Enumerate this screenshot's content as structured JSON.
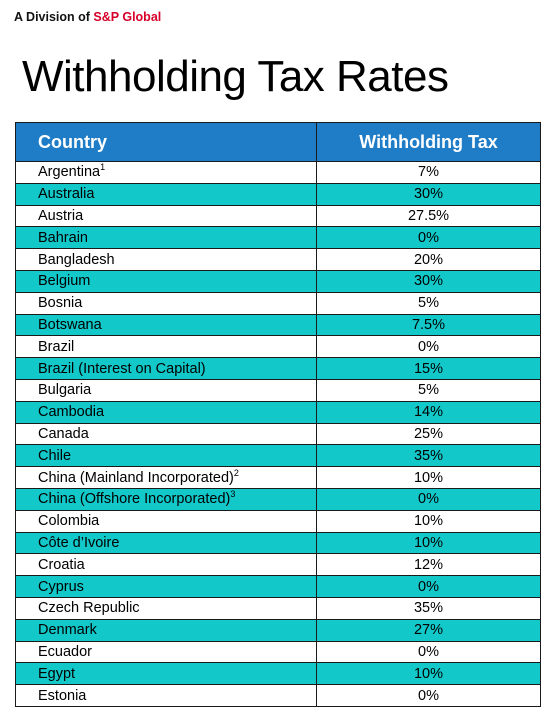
{
  "header": {
    "brand_prefix": "A Division of ",
    "brand_name": "S&P Global",
    "title": "Withholding Tax Rates"
  },
  "table": {
    "columns": [
      "Country",
      "Withholding Tax"
    ],
    "rows": [
      {
        "country": "Argentina",
        "note": "1",
        "rate": "7%"
      },
      {
        "country": "Australia",
        "note": "",
        "rate": "30%"
      },
      {
        "country": "Austria",
        "note": "",
        "rate": "27.5%"
      },
      {
        "country": "Bahrain",
        "note": "",
        "rate": "0%"
      },
      {
        "country": "Bangladesh",
        "note": "",
        "rate": "20%"
      },
      {
        "country": "Belgium",
        "note": "",
        "rate": "30%"
      },
      {
        "country": "Bosnia",
        "note": "",
        "rate": "5%"
      },
      {
        "country": "Botswana",
        "note": "",
        "rate": "7.5%"
      },
      {
        "country": "Brazil",
        "note": "",
        "rate": "0%"
      },
      {
        "country": "Brazil (Interest on Capital)",
        "note": "",
        "rate": "15%"
      },
      {
        "country": "Bulgaria",
        "note": "",
        "rate": "5%"
      },
      {
        "country": "Cambodia",
        "note": "",
        "rate": "14%"
      },
      {
        "country": "Canada",
        "note": "",
        "rate": "25%"
      },
      {
        "country": "Chile",
        "note": "",
        "rate": "35%"
      },
      {
        "country": "China (Mainland Incorporated)",
        "note": "2",
        "rate": "10%"
      },
      {
        "country": "China (Offshore Incorporated)",
        "note": "3",
        "rate": "0%"
      },
      {
        "country": "Colombia",
        "note": "",
        "rate": "10%"
      },
      {
        "country": "Côte d’Ivoire",
        "note": "",
        "rate": "10%"
      },
      {
        "country": "Croatia",
        "note": "",
        "rate": "12%"
      },
      {
        "country": "Cyprus",
        "note": "",
        "rate": "0%"
      },
      {
        "country": "Czech Republic",
        "note": "",
        "rate": "35%"
      },
      {
        "country": "Denmark",
        "note": "",
        "rate": "27%"
      },
      {
        "country": "Ecuador",
        "note": "",
        "rate": "0%"
      },
      {
        "country": "Egypt",
        "note": "",
        "rate": "10%"
      },
      {
        "country": "Estonia",
        "note": "",
        "rate": "0%"
      }
    ]
  },
  "colors": {
    "header_bg": "#1f7cc6",
    "row_alt": "#13c8c9",
    "brand_red": "#d6002a"
  }
}
